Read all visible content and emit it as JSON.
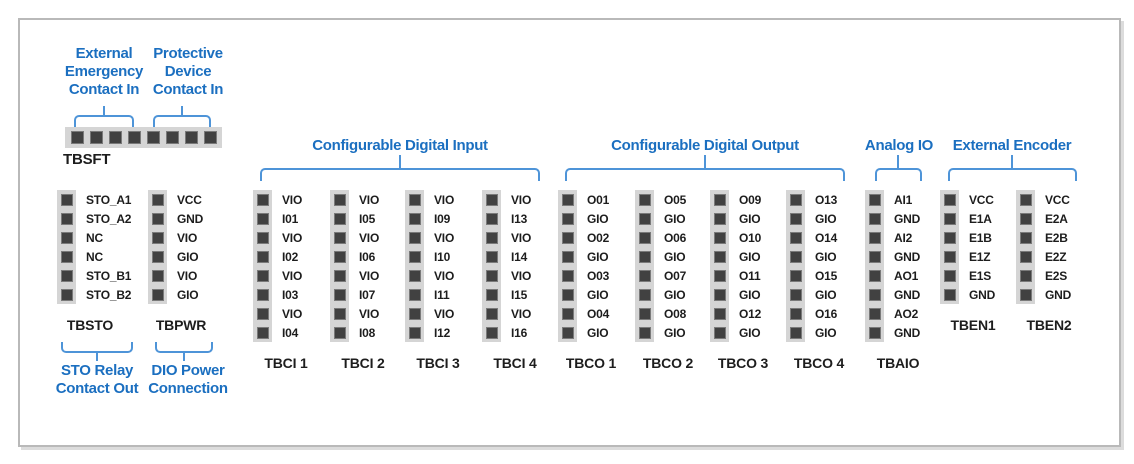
{
  "colors": {
    "accent_blue": "#1b6fc0",
    "brace_blue": "#4e94d8",
    "pin_square": "#414141",
    "pin_strip": "#d5d5d5",
    "text_dark": "#1d1d1d",
    "frame_border": "#b9b9b9"
  },
  "tbsft": {
    "name": "TBSFT",
    "pin_count": 8,
    "callouts": [
      {
        "lines": [
          "External",
          "Emergency",
          "Contact In"
        ]
      },
      {
        "lines": [
          "Protective",
          "Device",
          "Contact In"
        ]
      }
    ]
  },
  "tbsto": {
    "name": "TBSTO",
    "pins": [
      "STO_A1",
      "STO_A2",
      "NC",
      "NC",
      "STO_B1",
      "STO_B2"
    ],
    "callout_lines": [
      "STO Relay",
      "Contact Out"
    ]
  },
  "tbpwr": {
    "name": "TBPWR",
    "pins": [
      "VCC",
      "GND",
      "VIO",
      "GIO",
      "VIO",
      "GIO"
    ],
    "callout_lines": [
      "DIO Power",
      "Connection"
    ]
  },
  "digital_input": {
    "header": "Configurable Digital Input",
    "blocks": [
      {
        "name": "TBCI 1",
        "pins": [
          "VIO",
          "I01",
          "VIO",
          "I02",
          "VIO",
          "I03",
          "VIO",
          "I04"
        ]
      },
      {
        "name": "TBCI 2",
        "pins": [
          "VIO",
          "I05",
          "VIO",
          "I06",
          "VIO",
          "I07",
          "VIO",
          "I08"
        ]
      },
      {
        "name": "TBCI 3",
        "pins": [
          "VIO",
          "I09",
          "VIO",
          "I10",
          "VIO",
          "I11",
          "VIO",
          "I12"
        ]
      },
      {
        "name": "TBCI 4",
        "pins": [
          "VIO",
          "I13",
          "VIO",
          "I14",
          "VIO",
          "I15",
          "VIO",
          "I16"
        ]
      }
    ]
  },
  "digital_output": {
    "header": "Configurable Digital Output",
    "blocks": [
      {
        "name": "TBCO 1",
        "pins": [
          "O01",
          "GIO",
          "O02",
          "GIO",
          "O03",
          "GIO",
          "O04",
          "GIO"
        ]
      },
      {
        "name": "TBCO 2",
        "pins": [
          "O05",
          "GIO",
          "O06",
          "GIO",
          "O07",
          "GIO",
          "O08",
          "GIO"
        ]
      },
      {
        "name": "TBCO 3",
        "pins": [
          "O09",
          "GIO",
          "O10",
          "GIO",
          "O11",
          "GIO",
          "O12",
          "GIO"
        ]
      },
      {
        "name": "TBCO 4",
        "pins": [
          "O13",
          "GIO",
          "O14",
          "GIO",
          "O15",
          "GIO",
          "O16",
          "GIO"
        ]
      }
    ]
  },
  "analog_io": {
    "header": "Analog IO",
    "blocks": [
      {
        "name": "TBAIO",
        "pins": [
          "AI1",
          "GND",
          "AI2",
          "GND",
          "AO1",
          "GND",
          "AO2",
          "GND"
        ]
      }
    ]
  },
  "external_encoder": {
    "header": "External Encoder",
    "blocks": [
      {
        "name": "TBEN1",
        "pins": [
          "VCC",
          "E1A",
          "E1B",
          "E1Z",
          "E1S",
          "GND"
        ]
      },
      {
        "name": "TBEN2",
        "pins": [
          "VCC",
          "E2A",
          "E2B",
          "E2Z",
          "E2S",
          "GND"
        ]
      }
    ]
  }
}
